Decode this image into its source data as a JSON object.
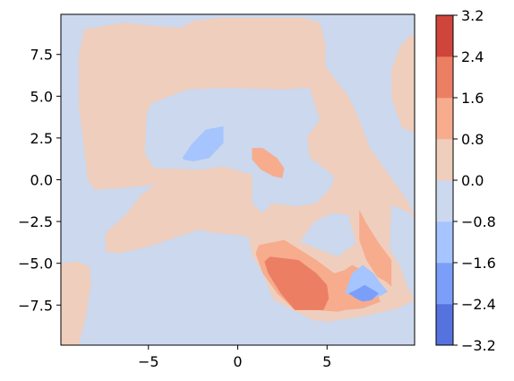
{
  "chart_data": {
    "type": "heatmap",
    "subtype": "filled-contour",
    "colormap": "coolwarm",
    "title": "",
    "xlabel": "",
    "ylabel": "",
    "xlim": [
      -9.9,
      9.9
    ],
    "ylim": [
      -9.9,
      9.9
    ],
    "x_ticks": [
      -5,
      0,
      5
    ],
    "x_tick_labels": [
      "−5",
      "0",
      "5"
    ],
    "y_ticks": [
      7.5,
      5.0,
      2.5,
      0.0,
      -2.5,
      -5.0,
      -7.5
    ],
    "y_tick_labels": [
      "7.5",
      "5.0",
      "2.5",
      "0.0",
      "−2.5",
      "−5.0",
      "−7.5"
    ],
    "grid": false,
    "colorbar": {
      "levels": [
        -3.2,
        -2.4,
        -1.6,
        -0.8,
        0.0,
        0.8,
        1.6,
        2.4,
        3.2
      ],
      "tick_labels": [
        "−3.2",
        "−2.4",
        "−1.6",
        "−0.8",
        "0.0",
        "0.8",
        "1.6",
        "2.4",
        "3.2"
      ],
      "band_colors": [
        "#5572df",
        "#7b9ff9",
        "#a6c4fe",
        "#cbd8ee",
        "#efcebd",
        "#f7ac8e",
        "#ec7f63",
        "#cf453c"
      ]
    },
    "regions": [
      {
        "name": "positive-band-wrapping-top-and-diagonal",
        "level_band": [
          0.0,
          0.8
        ],
        "polygon": [
          [
            -8.6,
            9.0
          ],
          [
            -6.4,
            9.4
          ],
          [
            -4.6,
            9.2
          ],
          [
            -3.2,
            9.1
          ],
          [
            -2.5,
            9.5
          ],
          [
            -1.0,
            9.7
          ],
          [
            0.4,
            9.7
          ],
          [
            3.6,
            9.7
          ],
          [
            4.6,
            9.4
          ],
          [
            4.9,
            8.2
          ],
          [
            4.9,
            6.8
          ],
          [
            5.6,
            5.8
          ],
          [
            6.2,
            5.0
          ],
          [
            6.8,
            3.6
          ],
          [
            7.4,
            1.9
          ],
          [
            9.6,
            -1.4
          ],
          [
            9.9,
            -2.2
          ],
          [
            9.9,
            -7.2
          ],
          [
            9.0,
            -7.7
          ],
          [
            7.0,
            -8.2
          ],
          [
            5.0,
            -8.5
          ],
          [
            4.2,
            -8.4
          ],
          [
            2.0,
            -7.2
          ],
          [
            1.4,
            -5.6
          ],
          [
            0.8,
            -4.5
          ],
          [
            0.6,
            -3.4
          ],
          [
            -0.1,
            -3.3
          ],
          [
            -1.2,
            -3.2
          ],
          [
            -2.2,
            -3.0
          ],
          [
            -3.6,
            -3.5
          ],
          [
            -5.0,
            -4.0
          ],
          [
            -6.6,
            -4.4
          ],
          [
            -7.4,
            -4.3
          ],
          [
            -7.4,
            -3.2
          ],
          [
            -6.2,
            -2.0
          ],
          [
            -5.4,
            -0.9
          ],
          [
            -4.6,
            -0.3
          ],
          [
            -6.5,
            -0.5
          ],
          [
            -8.0,
            -0.6
          ],
          [
            -8.4,
            0.0
          ],
          [
            -8.6,
            1.9
          ],
          [
            -8.9,
            4.4
          ],
          [
            -8.9,
            7.4
          ]
        ]
      },
      {
        "name": "positive-band-right-edge",
        "level_band": [
          0.0,
          0.8
        ],
        "polygon": [
          [
            9.9,
            8.7
          ],
          [
            9.6,
            8.6
          ],
          [
            9.1,
            8.0
          ],
          [
            8.6,
            6.6
          ],
          [
            8.6,
            4.9
          ],
          [
            9.2,
            3.1
          ],
          [
            9.9,
            2.8
          ]
        ]
      },
      {
        "name": "positive-band-bottom-left",
        "level_band": [
          0.0,
          0.8
        ],
        "polygon": [
          [
            -9.9,
            -5.0
          ],
          [
            -9.0,
            -4.9
          ],
          [
            -8.3,
            -5.2
          ],
          [
            -8.2,
            -6.2
          ],
          [
            -8.5,
            -8.2
          ],
          [
            -8.9,
            -9.9
          ],
          [
            -9.9,
            -9.9
          ]
        ]
      },
      {
        "name": "negative-band-central-hole",
        "level_band": [
          -0.8,
          0.0
        ],
        "polygon": [
          [
            -5.1,
            4.0
          ],
          [
            -4.8,
            4.6
          ],
          [
            -2.8,
            5.4
          ],
          [
            -0.6,
            5.5
          ],
          [
            2.4,
            5.4
          ],
          [
            4.0,
            5.5
          ],
          [
            4.6,
            3.6
          ],
          [
            3.9,
            2.6
          ],
          [
            4.0,
            1.4
          ],
          [
            5.4,
            0.2
          ],
          [
            5.2,
            -0.5
          ],
          [
            4.4,
            -1.4
          ],
          [
            3.2,
            -1.6
          ],
          [
            1.9,
            -1.4
          ],
          [
            1.4,
            -2.0
          ],
          [
            0.8,
            -1.4
          ],
          [
            0.8,
            0.3
          ],
          [
            -0.8,
            0.8
          ],
          [
            -2.0,
            0.6
          ],
          [
            -4.7,
            0.7
          ],
          [
            -5.2,
            1.6
          ]
        ]
      },
      {
        "name": "negative-band-lower-middle-notch",
        "level_band": [
          -0.8,
          0.0
        ],
        "polygon": [
          [
            3.5,
            -3.7
          ],
          [
            4.3,
            -2.5
          ],
          [
            5.3,
            -2.0
          ],
          [
            6.2,
            -2.1
          ],
          [
            6.6,
            -3.8
          ],
          [
            5.6,
            -4.6
          ],
          [
            4.6,
            -4.2
          ]
        ]
      },
      {
        "name": "negative-band-right-gap",
        "level_band": [
          -0.8,
          0.0
        ],
        "polygon": [
          [
            9.9,
            -2.4
          ],
          [
            9.7,
            -2.0
          ],
          [
            8.6,
            -1.5
          ],
          [
            8.5,
            -4.1
          ],
          [
            9.1,
            -5.2
          ],
          [
            9.5,
            -6.4
          ],
          [
            9.9,
            -7.2
          ]
        ]
      },
      {
        "name": "positive-band-2-center",
        "level_band": [
          0.8,
          1.6
        ],
        "polygon": [
          [
            0.8,
            1.9
          ],
          [
            1.4,
            1.9
          ],
          [
            2.2,
            1.3
          ],
          [
            2.6,
            0.7
          ],
          [
            2.5,
            0.1
          ],
          [
            2.0,
            0.2
          ],
          [
            1.3,
            0.6
          ],
          [
            0.8,
            1.2
          ]
        ]
      },
      {
        "name": "positive-band-2-lower",
        "level_band": [
          0.8,
          1.6
        ],
        "polygon": [
          [
            1.2,
            -3.9
          ],
          [
            2.6,
            -3.6
          ],
          [
            4.4,
            -4.8
          ],
          [
            5.4,
            -5.6
          ],
          [
            6.0,
            -5.4
          ],
          [
            6.4,
            -5.1
          ],
          [
            7.3,
            -5.6
          ],
          [
            7.6,
            -6.4
          ],
          [
            8.0,
            -7.3
          ],
          [
            7.0,
            -7.7
          ],
          [
            6.0,
            -7.8
          ],
          [
            5.6,
            -7.9
          ],
          [
            4.4,
            -7.8
          ],
          [
            3.2,
            -7.8
          ],
          [
            2.2,
            -6.8
          ],
          [
            1.4,
            -5.6
          ],
          [
            1.0,
            -4.4
          ]
        ]
      },
      {
        "name": "positive-band-2-right-arm",
        "level_band": [
          0.8,
          1.6
        ],
        "polygon": [
          [
            6.8,
            -1.8
          ],
          [
            7.2,
            -2.6
          ],
          [
            7.9,
            -3.8
          ],
          [
            8.6,
            -4.8
          ],
          [
            8.6,
            -6.4
          ],
          [
            8.3,
            -6.1
          ],
          [
            7.8,
            -5.8
          ],
          [
            7.2,
            -4.8
          ],
          [
            6.8,
            -3.6
          ]
        ]
      },
      {
        "name": "positive-band-3-lower",
        "level_band": [
          1.6,
          2.4
        ],
        "polygon": [
          [
            1.8,
            -4.6
          ],
          [
            3.4,
            -4.8
          ],
          [
            4.4,
            -5.6
          ],
          [
            5.0,
            -6.3
          ],
          [
            5.1,
            -7.1
          ],
          [
            4.8,
            -7.8
          ],
          [
            3.2,
            -7.8
          ],
          [
            2.4,
            -6.8
          ],
          [
            1.7,
            -5.6
          ],
          [
            1.5,
            -4.9
          ]
        ]
      },
      {
        "name": "negative-band-2-left-blob",
        "level_band": [
          -1.6,
          -0.8
        ],
        "polygon": [
          [
            -3.1,
            1.3
          ],
          [
            -2.6,
            2.1
          ],
          [
            -1.8,
            3.0
          ],
          [
            -0.8,
            3.2
          ],
          [
            -0.8,
            2.2
          ],
          [
            -1.6,
            1.3
          ],
          [
            -2.5,
            1.1
          ],
          [
            -3.0,
            1.2
          ]
        ]
      },
      {
        "name": "negative-band-2-lower-right",
        "level_band": [
          -1.6,
          -0.8
        ],
        "polygon": [
          [
            6.0,
            -6.8
          ],
          [
            6.4,
            -5.6
          ],
          [
            7.0,
            -5.1
          ],
          [
            7.6,
            -5.6
          ],
          [
            8.0,
            -6.2
          ],
          [
            8.4,
            -6.7
          ],
          [
            7.9,
            -7.0
          ],
          [
            7.0,
            -7.1
          ]
        ]
      },
      {
        "name": "negative-band-3-lower-right",
        "level_band": [
          -2.4,
          -1.6
        ],
        "polygon": [
          [
            6.2,
            -6.8
          ],
          [
            6.6,
            -6.6
          ],
          [
            7.1,
            -6.3
          ],
          [
            7.6,
            -6.6
          ],
          [
            7.9,
            -6.8
          ],
          [
            7.5,
            -7.2
          ],
          [
            7.0,
            -7.3
          ],
          [
            6.6,
            -7.1
          ]
        ]
      }
    ]
  }
}
